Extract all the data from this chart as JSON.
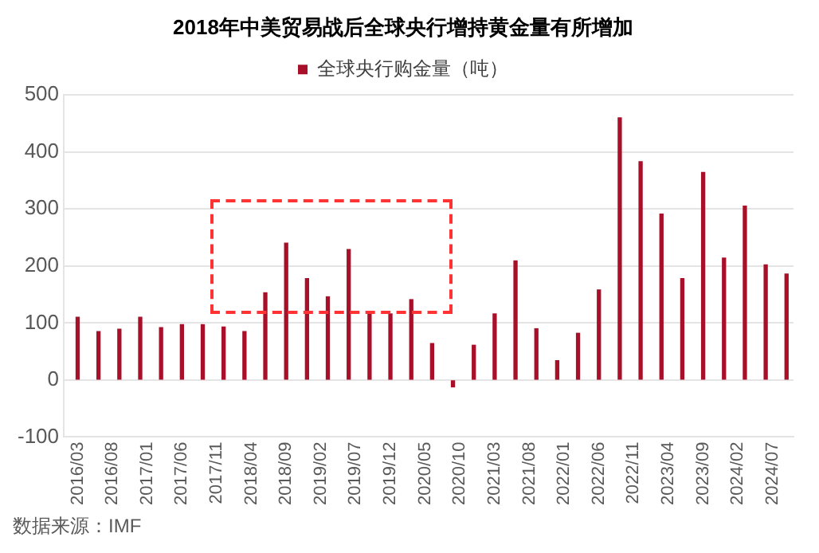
{
  "chart_data": {
    "type": "bar",
    "title": "2018年中美贸易战后全球央行增持黄金量有所增加",
    "x": [
      "2016-03",
      "2016-06",
      "2016-09",
      "2016-12",
      "2017-03",
      "2017-06",
      "2017-09",
      "2017-12",
      "2018-03",
      "2018-06",
      "2018-09",
      "2018-12",
      "2019-03",
      "2019-06",
      "2019-09",
      "2019-12",
      "2020-03",
      "2020-06",
      "2020-09",
      "2020-12",
      "2021-03",
      "2021-06",
      "2021-09",
      "2021-12",
      "2022-03",
      "2022-06",
      "2022-09",
      "2022-12",
      "2023-03",
      "2023-06",
      "2023-09",
      "2023-12",
      "2024-03",
      "2024-06",
      "2024-09"
    ],
    "series": [
      {
        "name": "全球央行购金量（吨）",
        "color": "#a8102a",
        "values": [
          110,
          85,
          89,
          110,
          92,
          97,
          97,
          93,
          85,
          153,
          240,
          178,
          146,
          229,
          115,
          116,
          141,
          64,
          -12,
          61,
          116,
          209,
          90,
          34,
          82,
          158,
          460,
          383,
          291,
          178,
          364,
          214,
          305,
          202,
          186
        ]
      }
    ],
    "xlim": [
      "2016-01",
      "2024-10"
    ],
    "xticks": [
      {
        "value": "2016-03",
        "label": "2016/03"
      },
      {
        "value": "2016-08",
        "label": "2016/08"
      },
      {
        "value": "2017-01",
        "label": "2017/01"
      },
      {
        "value": "2017-06",
        "label": "2017/06"
      },
      {
        "value": "2017-11",
        "label": "2017/11"
      },
      {
        "value": "2018-04",
        "label": "2018/04"
      },
      {
        "value": "2018-09",
        "label": "2018/09"
      },
      {
        "value": "2019-02",
        "label": "2019/02"
      },
      {
        "value": "2019-07",
        "label": "2019/07"
      },
      {
        "value": "2019-12",
        "label": "2019/12"
      },
      {
        "value": "2020-05",
        "label": "2020/05"
      },
      {
        "value": "2020-10",
        "label": "2020/10"
      },
      {
        "value": "2021-03",
        "label": "2021/03"
      },
      {
        "value": "2021-08",
        "label": "2021/08"
      },
      {
        "value": "2022-01",
        "label": "2022/01"
      },
      {
        "value": "2022-06",
        "label": "2022/06"
      },
      {
        "value": "2022-11",
        "label": "2022/11"
      },
      {
        "value": "2023-04",
        "label": "2023/04"
      },
      {
        "value": "2023-09",
        "label": "2023/09"
      },
      {
        "value": "2024-02",
        "label": "2024/02"
      },
      {
        "value": "2024-07",
        "label": "2024/07"
      }
    ],
    "ylim": [
      -100,
      500
    ],
    "yticks": [
      -100,
      0,
      100,
      200,
      300,
      400,
      500
    ],
    "grid": "y",
    "legend": "top",
    "annotations": [
      "数据来源：IMF"
    ]
  }
}
